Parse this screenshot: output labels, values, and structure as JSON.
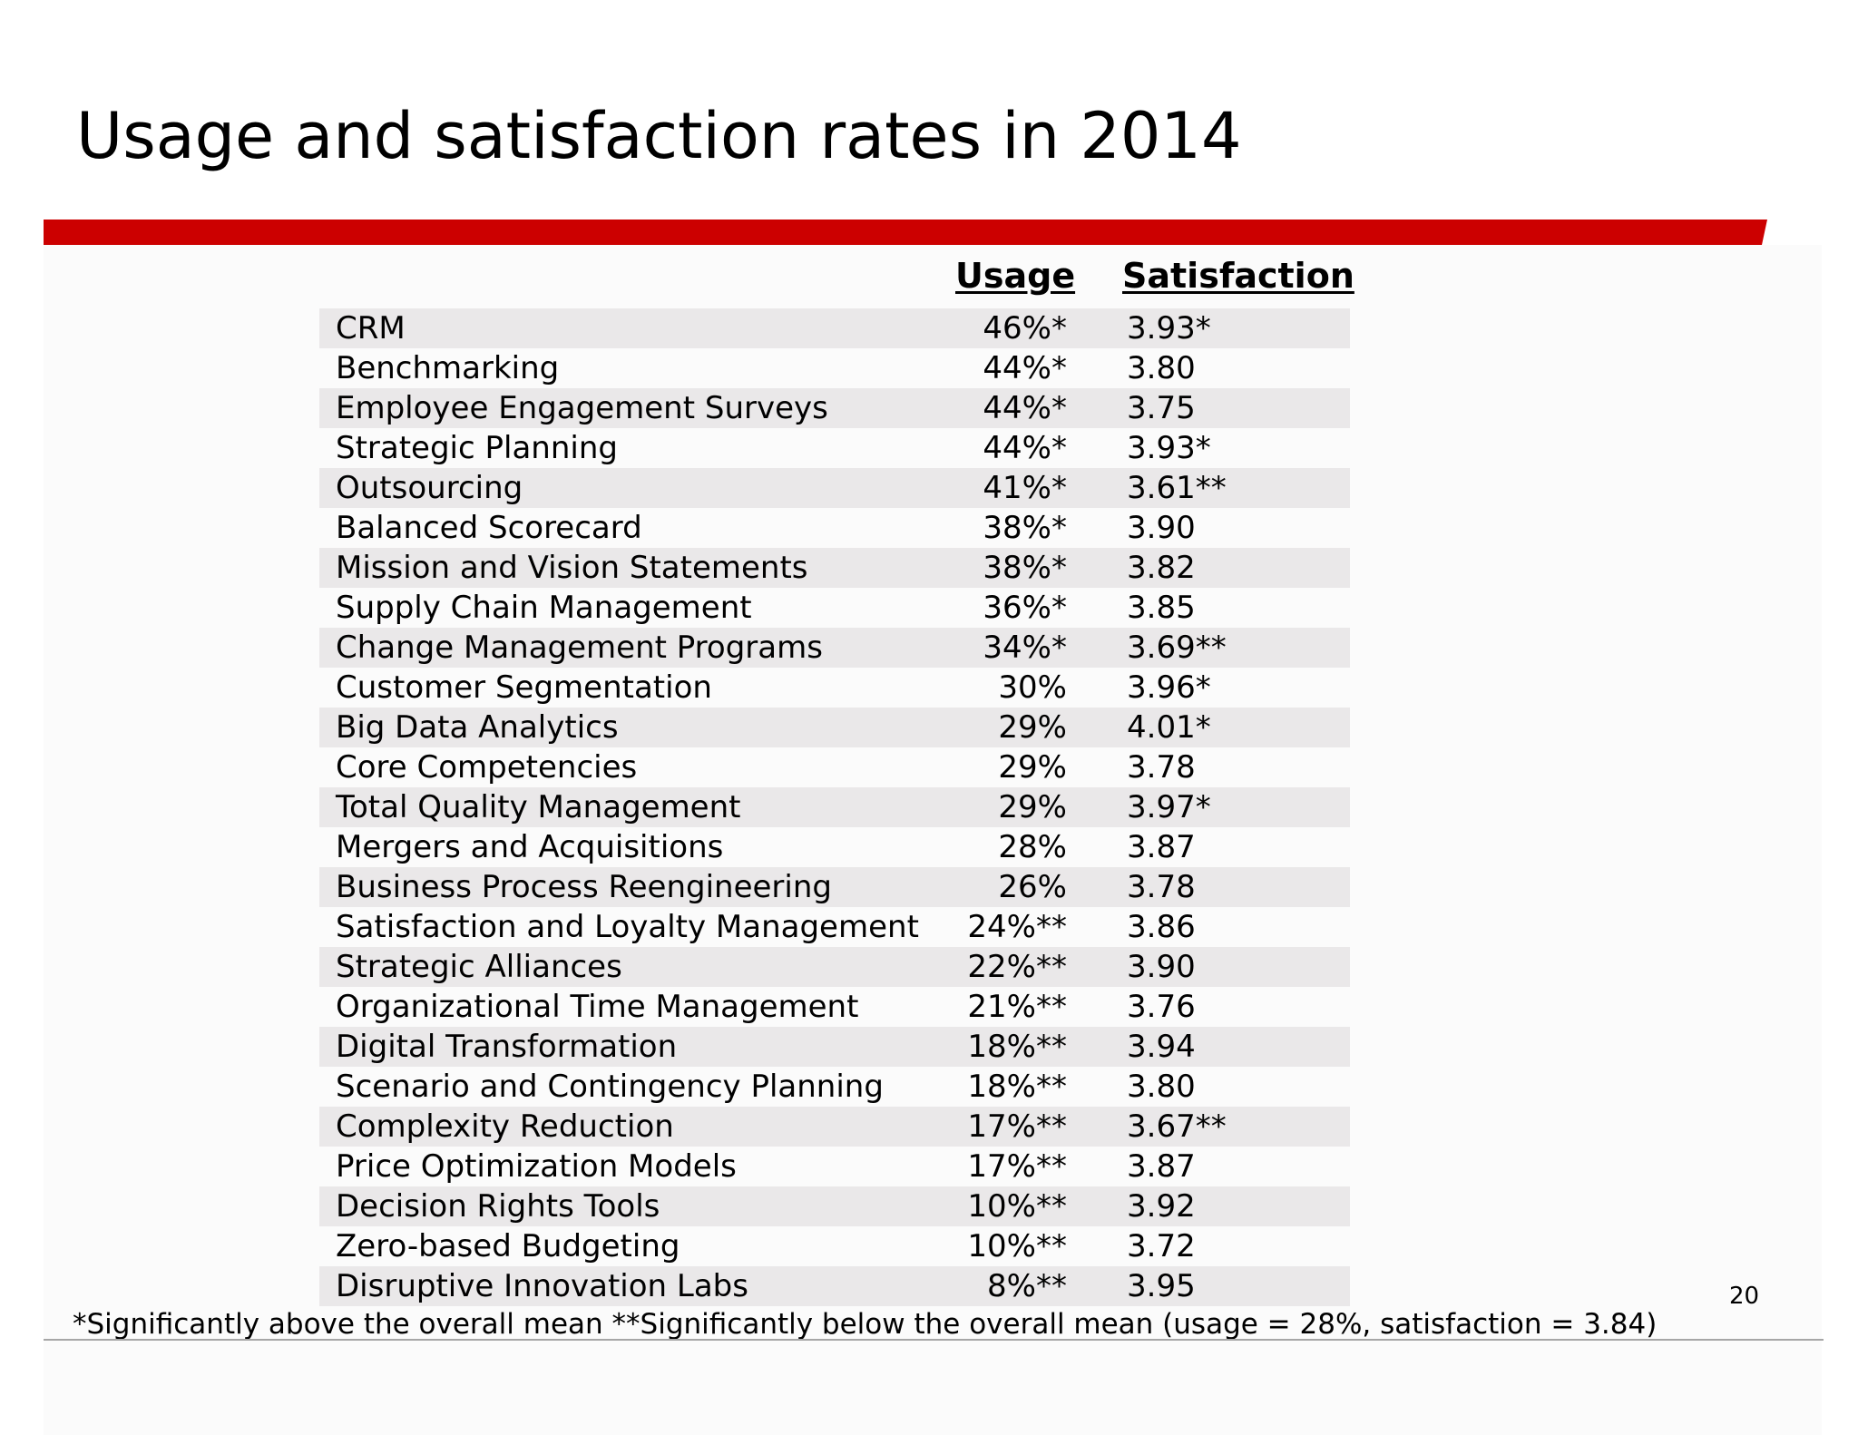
{
  "slide": {
    "title": "Usage and satisfaction rates in 2014",
    "accent_color": "#cc0000",
    "page_number": "20"
  },
  "table": {
    "headers": {
      "usage": "Usage",
      "satisfaction": "Satisfaction"
    },
    "rows": [
      {
        "name": "CRM",
        "usage": "46%*",
        "satisfaction": "3.93*"
      },
      {
        "name": "Benchmarking",
        "usage": "44%*",
        "satisfaction": "3.80"
      },
      {
        "name": "Employee Engagement Surveys",
        "usage": "44%*",
        "satisfaction": "3.75"
      },
      {
        "name": "Strategic Planning",
        "usage": "44%*",
        "satisfaction": "3.93*"
      },
      {
        "name": "Outsourcing",
        "usage": "41%*",
        "satisfaction": "3.61**"
      },
      {
        "name": "Balanced Scorecard",
        "usage": "38%*",
        "satisfaction": "3.90"
      },
      {
        "name": "Mission and Vision Statements",
        "usage": "38%*",
        "satisfaction": "3.82"
      },
      {
        "name": "Supply Chain Management",
        "usage": "36%*",
        "satisfaction": "3.85"
      },
      {
        "name": "Change Management Programs",
        "usage": "34%*",
        "satisfaction": "3.69**"
      },
      {
        "name": "Customer Segmentation",
        "usage": "30%",
        "satisfaction": "3.96*"
      },
      {
        "name": "Big Data Analytics",
        "usage": "29%",
        "satisfaction": "4.01*"
      },
      {
        "name": "Core Competencies",
        "usage": "29%",
        "satisfaction": "3.78"
      },
      {
        "name": "Total Quality Management",
        "usage": "29%",
        "satisfaction": "3.97*"
      },
      {
        "name": "Mergers and Acquisitions",
        "usage": "28%",
        "satisfaction": "3.87"
      },
      {
        "name": "Business Process Reengineering",
        "usage": "26%",
        "satisfaction": "3.78"
      },
      {
        "name": "Satisfaction and Loyalty Management",
        "usage": "24%**",
        "satisfaction": "3.86"
      },
      {
        "name": "Strategic Alliances",
        "usage": "22%**",
        "satisfaction": "3.90"
      },
      {
        "name": "Organizational Time Management",
        "usage": "21%**",
        "satisfaction": "3.76"
      },
      {
        "name": "Digital Transformation",
        "usage": "18%**",
        "satisfaction": "3.94"
      },
      {
        "name": "Scenario and Contingency Planning",
        "usage": "18%**",
        "satisfaction": "3.80"
      },
      {
        "name": "Complexity Reduction",
        "usage": "17%**",
        "satisfaction": "3.67**"
      },
      {
        "name": "Price Optimization Models",
        "usage": "17%**",
        "satisfaction": "3.87"
      },
      {
        "name": "Decision Rights Tools",
        "usage": "10%**",
        "satisfaction": "3.92"
      },
      {
        "name": "Zero-based Budgeting",
        "usage": "10%**",
        "satisfaction": "3.72"
      },
      {
        "name": "Disruptive Innovation Labs",
        "usage": "8%**",
        "satisfaction": "3.95"
      }
    ]
  },
  "footnote": "*Significantly above the overall mean  **Significantly below the overall mean (usage = 28%, satisfaction = 3.84)"
}
